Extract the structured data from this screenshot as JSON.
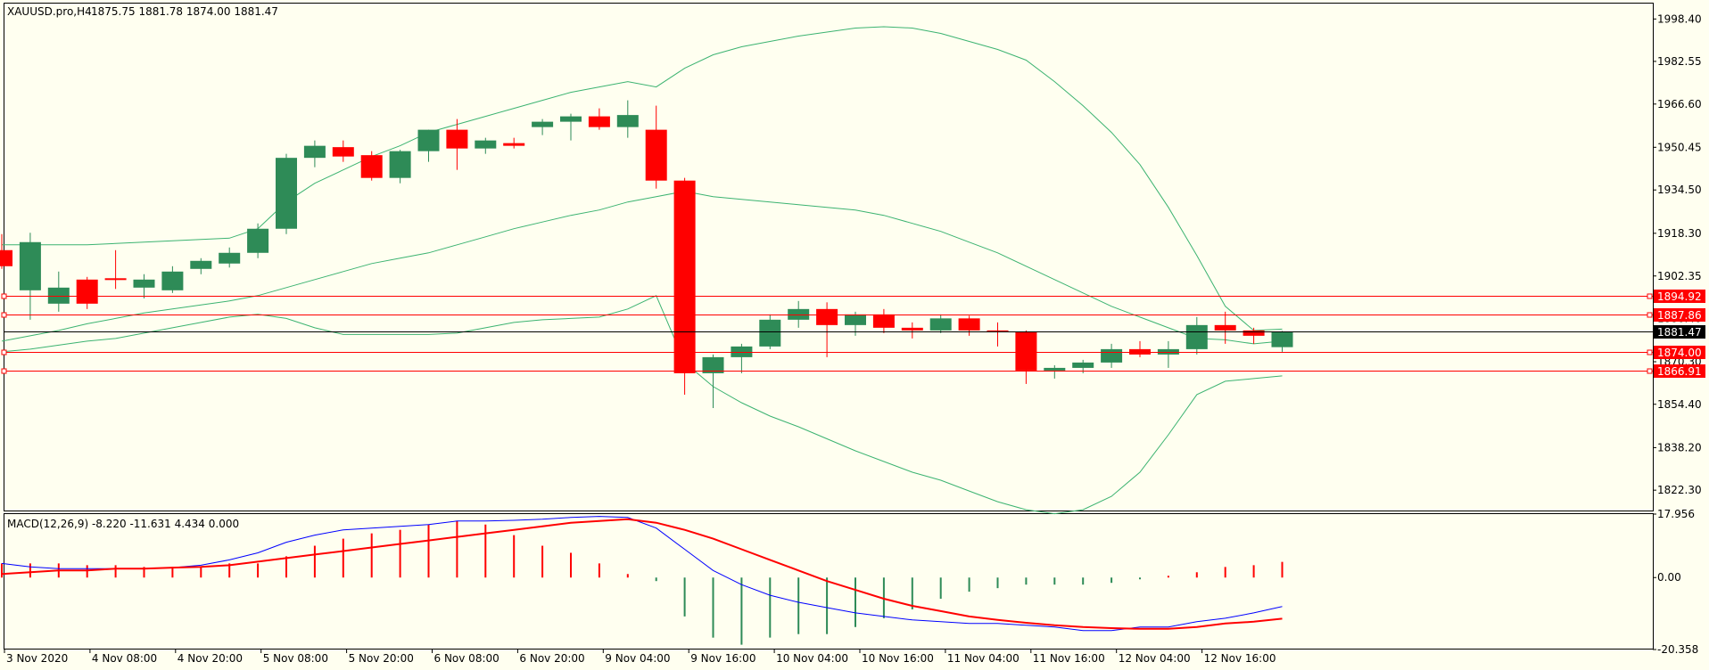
{
  "window": {
    "symbol_label": "XAUUSD.pro,H4",
    "ohlc_label": "1875.75 1881.78 1874.00 1881.47",
    "macd_label": "MACD(12,26,9) -8.220 -11.631 4.434 0.000"
  },
  "colors": {
    "background": "#fffff0",
    "bull_body": "#2e8b57",
    "bear_body": "#ff0000",
    "bands": "#3cb371",
    "macd_line": "#0000ff",
    "signal_line": "#ff0000",
    "hline": "#ff0000",
    "bid_line": "#000000"
  },
  "chart_data": [
    {
      "type": "candlestick",
      "title": "XAUUSD.pro,H4",
      "ylim": [
        1814.36,
        2004.16
      ],
      "y_ticks": [
        "1998.40",
        "1982.55",
        "1966.60",
        "1950.45",
        "1934.50",
        "1918.30",
        "1902.35",
        "1886.40",
        "1870.30",
        "1854.40",
        "1838.20",
        "1822.30"
      ],
      "x_ticks": [
        "3 Nov 2020",
        "4 Nov 08:00",
        "4 Nov 20:00",
        "5 Nov 08:00",
        "5 Nov 20:00",
        "6 Nov 08:00",
        "6 Nov 20:00",
        "9 Nov 04:00",
        "9 Nov 16:00",
        "10 Nov 04:00",
        "10 Nov 16:00",
        "11 Nov 04:00",
        "11 Nov 16:00",
        "12 Nov 04:00",
        "12 Nov 16:00"
      ],
      "candles": [
        {
          "o": 1912.0,
          "h": 1918.0,
          "l": 1905.0,
          "c": 1906.0
        },
        {
          "o": 1897.0,
          "h": 1918.5,
          "l": 1886.0,
          "c": 1915.0
        },
        {
          "o": 1892.0,
          "h": 1904.0,
          "l": 1889.0,
          "c": 1898.0
        },
        {
          "o": 1901.0,
          "h": 1902.0,
          "l": 1890.0,
          "c": 1892.0
        },
        {
          "o": 1901.5,
          "h": 1912.0,
          "l": 1897.5,
          "c": 1901.0
        },
        {
          "o": 1898.0,
          "h": 1903.0,
          "l": 1894.0,
          "c": 1901.0
        },
        {
          "o": 1897.0,
          "h": 1906.0,
          "l": 1896.0,
          "c": 1904.0
        },
        {
          "o": 1905.0,
          "h": 1909.0,
          "l": 1903.0,
          "c": 1908.0
        },
        {
          "o": 1907.0,
          "h": 1913.0,
          "l": 1905.5,
          "c": 1911.0
        },
        {
          "o": 1911.0,
          "h": 1922.0,
          "l": 1909.0,
          "c": 1920.0
        },
        {
          "o": 1920.0,
          "h": 1948.0,
          "l": 1918.0,
          "c": 1946.5
        },
        {
          "o": 1946.5,
          "h": 1953.0,
          "l": 1943.0,
          "c": 1951.0
        },
        {
          "o": 1950.5,
          "h": 1953.0,
          "l": 1945.0,
          "c": 1947.0
        },
        {
          "o": 1947.5,
          "h": 1949.0,
          "l": 1938.0,
          "c": 1939.0
        },
        {
          "o": 1939.0,
          "h": 1949.5,
          "l": 1937.0,
          "c": 1949.0
        },
        {
          "o": 1949.0,
          "h": 1957.0,
          "l": 1945.0,
          "c": 1957.0
        },
        {
          "o": 1957.0,
          "h": 1961.0,
          "l": 1942.0,
          "c": 1950.0
        },
        {
          "o": 1950.0,
          "h": 1954.0,
          "l": 1948.0,
          "c": 1953.0
        },
        {
          "o": 1952.0,
          "h": 1954.0,
          "l": 1950.0,
          "c": 1951.0
        },
        {
          "o": 1958.0,
          "h": 1961.0,
          "l": 1955.0,
          "c": 1960.0
        },
        {
          "o": 1960.0,
          "h": 1963.0,
          "l": 1953.0,
          "c": 1962.0
        },
        {
          "o": 1962.0,
          "h": 1965.0,
          "l": 1957.0,
          "c": 1958.0
        },
        {
          "o": 1958.0,
          "h": 1968.0,
          "l": 1954.0,
          "c": 1962.5
        },
        {
          "o": 1957.0,
          "h": 1966.0,
          "l": 1935.0,
          "c": 1938.0
        },
        {
          "o": 1938.0,
          "h": 1939.0,
          "l": 1858.0,
          "c": 1866.0
        },
        {
          "o": 1866.0,
          "h": 1873.0,
          "l": 1853.0,
          "c": 1872.0
        },
        {
          "o": 1872.0,
          "h": 1877.0,
          "l": 1866.0,
          "c": 1876.0
        },
        {
          "o": 1876.0,
          "h": 1888.0,
          "l": 1875.0,
          "c": 1886.0
        },
        {
          "o": 1886.0,
          "h": 1893.0,
          "l": 1883.0,
          "c": 1890.0
        },
        {
          "o": 1890.0,
          "h": 1892.5,
          "l": 1872.0,
          "c": 1884.0
        },
        {
          "o": 1884.0,
          "h": 1889.0,
          "l": 1880.0,
          "c": 1888.0
        },
        {
          "o": 1888.0,
          "h": 1890.0,
          "l": 1881.0,
          "c": 1883.0
        },
        {
          "o": 1883.0,
          "h": 1885.0,
          "l": 1879.0,
          "c": 1882.0
        },
        {
          "o": 1882.0,
          "h": 1888.0,
          "l": 1881.0,
          "c": 1886.5
        },
        {
          "o": 1886.5,
          "h": 1887.5,
          "l": 1880.0,
          "c": 1882.0
        },
        {
          "o": 1882.0,
          "h": 1885.0,
          "l": 1876.0,
          "c": 1881.5
        },
        {
          "o": 1881.5,
          "h": 1882.0,
          "l": 1862.0,
          "c": 1867.0
        },
        {
          "o": 1867.0,
          "h": 1869.0,
          "l": 1864.0,
          "c": 1868.0
        },
        {
          "o": 1868.0,
          "h": 1871.0,
          "l": 1866.0,
          "c": 1870.0
        },
        {
          "o": 1870.0,
          "h": 1877.0,
          "l": 1868.0,
          "c": 1875.0
        },
        {
          "o": 1875.0,
          "h": 1878.0,
          "l": 1872.0,
          "c": 1873.0
        },
        {
          "o": 1873.0,
          "h": 1878.0,
          "l": 1868.0,
          "c": 1875.0
        },
        {
          "o": 1875.0,
          "h": 1887.0,
          "l": 1873.0,
          "c": 1884.0
        },
        {
          "o": 1884.0,
          "h": 1889.0,
          "l": 1877.0,
          "c": 1882.0
        },
        {
          "o": 1882.0,
          "h": 1883.0,
          "l": 1877.0,
          "c": 1880.0
        },
        {
          "o": 1875.75,
          "h": 1881.78,
          "l": 1874.0,
          "c": 1881.47
        }
      ],
      "bollinger": {
        "upper": [
          1914.0,
          1914.0,
          1914.0,
          1914.0,
          1914.5,
          1915.0,
          1915.5,
          1916.0,
          1916.5,
          1920.0,
          1930.0,
          1937.0,
          1942.0,
          1947.0,
          1951.0,
          1956.0,
          1959.0,
          1962.0,
          1965.0,
          1968.0,
          1971.0,
          1973.0,
          1975.0,
          1973.0,
          1980.0,
          1985.0,
          1988.0,
          1990.0,
          1992.0,
          1993.5,
          1995.0,
          1995.5,
          1995.0,
          1993.0,
          1990.0,
          1987.0,
          1983.0,
          1975.0,
          1966.0,
          1956.0,
          1944.0,
          1928.0,
          1910.0,
          1891.0,
          1882.0,
          1882.5
        ],
        "middle": [
          1878.0,
          1880.0,
          1882.0,
          1884.5,
          1886.5,
          1888.5,
          1890.0,
          1891.5,
          1893.0,
          1895.0,
          1898.0,
          1901.0,
          1904.0,
          1907.0,
          1909.0,
          1911.0,
          1914.0,
          1917.0,
          1920.0,
          1922.5,
          1925.0,
          1927.0,
          1930.0,
          1932.0,
          1934.0,
          1932.0,
          1931.0,
          1930.0,
          1929.0,
          1928.0,
          1927.0,
          1925.0,
          1922.0,
          1919.0,
          1915.0,
          1911.0,
          1906.0,
          1901.0,
          1896.0,
          1891.0,
          1887.0,
          1883.0,
          1879.0,
          1878.5,
          1877.0,
          1878.0
        ],
        "lower": [
          1874.0,
          1875.0,
          1876.5,
          1878.0,
          1879.0,
          1881.0,
          1883.0,
          1885.0,
          1887.0,
          1888.0,
          1886.5,
          1883.0,
          1880.5,
          1880.5,
          1880.5,
          1880.5,
          1881.0,
          1883.0,
          1885.0,
          1886.0,
          1886.5,
          1887.0,
          1890.0,
          1895.0,
          1870.0,
          1861.0,
          1855.0,
          1850.0,
          1846.0,
          1841.5,
          1837.0,
          1833.0,
          1829.0,
          1826.0,
          1822.0,
          1818.0,
          1815.0,
          1813.5,
          1815.0,
          1820.0,
          1829.0,
          1843.0,
          1858.0,
          1863.0,
          1864.0,
          1865.0
        ]
      },
      "price_lines": [
        {
          "label": "1894.92",
          "value": 1894.92,
          "style": "red"
        },
        {
          "label": "1887.86",
          "value": 1887.86,
          "style": "red"
        },
        {
          "label": "1881.47",
          "value": 1881.47,
          "style": "bid"
        },
        {
          "label": "1874.00",
          "value": 1874.0,
          "style": "red"
        },
        {
          "label": "1866.91",
          "value": 1866.91,
          "style": "red"
        }
      ]
    },
    {
      "type": "bar+line",
      "title": "MACD(12,26,9)",
      "ylim": [
        -20.358,
        17.956
      ],
      "y_ticks": [
        "17.956",
        "0.00",
        "-20.358"
      ],
      "series": [
        {
          "name": "macd_hist",
          "values": [
            4.0,
            4.0,
            4.0,
            3.5,
            3.5,
            3.0,
            3.0,
            3.0,
            4.0,
            4.0,
            6.0,
            9.0,
            11.0,
            12.5,
            13.5,
            15.0,
            16.0,
            15.0,
            12.0,
            9.0,
            7.0,
            4.0,
            1.0,
            -1.0,
            -11.0,
            -17.0,
            -19.0,
            -17.0,
            -16.0,
            -16.0,
            -14.0,
            -11.5,
            -9.0,
            -6.0,
            -4.0,
            -3.0,
            -2.0,
            -2.0,
            -2.0,
            -1.5,
            -0.5,
            0.5,
            1.5,
            3.0,
            3.5,
            4.434
          ]
        },
        {
          "name": "macd_main",
          "values": [
            4.0,
            3.0,
            2.5,
            2.5,
            2.5,
            2.5,
            2.8,
            3.5,
            5.0,
            7.0,
            10.0,
            12.0,
            13.5,
            14.0,
            14.5,
            15.0,
            16.0,
            16.0,
            16.2,
            16.5,
            17.0,
            17.3,
            17.0,
            14.0,
            8.0,
            2.0,
            -2.0,
            -5.0,
            -7.0,
            -8.5,
            -10.0,
            -11.0,
            -12.0,
            -12.5,
            -13.0,
            -13.0,
            -13.5,
            -14.0,
            -15.0,
            -15.0,
            -14.0,
            -14.0,
            -12.5,
            -11.5,
            -10.0,
            -8.22
          ]
        },
        {
          "name": "macd_signal",
          "values": [
            1.0,
            1.5,
            2.0,
            2.0,
            2.5,
            2.5,
            2.8,
            3.0,
            3.5,
            4.5,
            5.5,
            6.5,
            7.5,
            8.5,
            9.5,
            10.5,
            11.5,
            12.5,
            13.5,
            14.5,
            15.5,
            16.0,
            16.5,
            15.5,
            13.5,
            11.0,
            8.0,
            5.0,
            2.0,
            -1.0,
            -3.5,
            -6.0,
            -8.0,
            -9.5,
            -11.0,
            -12.0,
            -12.8,
            -13.5,
            -14.0,
            -14.3,
            -14.5,
            -14.5,
            -14.0,
            -13.0,
            -12.5,
            -11.631
          ]
        }
      ]
    }
  ]
}
